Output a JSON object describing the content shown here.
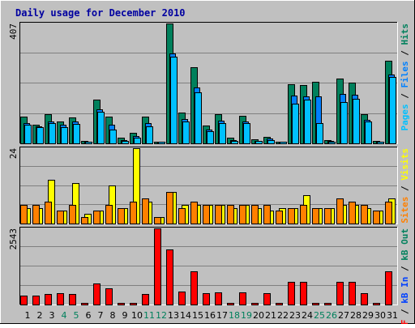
{
  "colors": {
    "background": "#c0c0c0",
    "frame": "#ffffff",
    "title": "#0000a0",
    "hits": "#00805c",
    "files": "#0080ff",
    "pages": "#00c0ff",
    "visits": "#ffff00",
    "sites": "#ff8000",
    "kbin": "#0040ff",
    "kbout": "#00805c",
    "kbf": "#ff0000",
    "weekend": "#00805c",
    "weekday": "#000000",
    "grid": "#808080"
  },
  "chart_data": {
    "type": "bar",
    "title": "Daily usage for December 2010",
    "categories": [
      "1",
      "2",
      "3",
      "4",
      "5",
      "6",
      "7",
      "8",
      "9",
      "10",
      "11",
      "12",
      "13",
      "14",
      "15",
      "16",
      "17",
      "18",
      "19",
      "20",
      "21",
      "22",
      "23",
      "24",
      "25",
      "26",
      "27",
      "28",
      "29",
      "30",
      "31"
    ],
    "weekend_days": [
      "4",
      "5",
      "11",
      "12",
      "18",
      "19",
      "25",
      "26"
    ],
    "panels": [
      {
        "id": "hits-files-pages",
        "max_label": "407",
        "ylim": [
          0,
          407
        ],
        "legend_side": "right",
        "legend": [
          {
            "text": "Pages",
            "color": "#00c0ff"
          },
          {
            "text": " / ",
            "color": "#000000"
          },
          {
            "text": "Files",
            "color": "#0080ff"
          },
          {
            "text": " / ",
            "color": "#000000"
          },
          {
            "text": "Hits",
            "color": "#00805c"
          }
        ],
        "series": [
          {
            "name": "Hits",
            "color": "#00805c",
            "values": [
              90,
              62,
              98,
              75,
              88,
              9,
              148,
              90,
              20,
              35,
              90,
              6,
              407,
              104,
              259,
              60,
              98,
              19,
              94,
              15,
              23,
              5,
              201,
              199,
              208,
              10,
              219,
              206,
              100,
              9,
              280
            ]
          },
          {
            "name": "Files",
            "color": "#0080ff",
            "values": [
              70,
              57,
              75,
              62,
              75,
              6,
              115,
              62,
              12,
              25,
              68,
              4,
              306,
              83,
              190,
              48,
              78,
              12,
              75,
              9,
              17,
              4,
              161,
              159,
              160,
              8,
              168,
              165,
              80,
              6,
              235
            ]
          },
          {
            "name": "Pages",
            "color": "#00c0ff",
            "values": [
              62,
              54,
              68,
              55,
              66,
              5,
              108,
              48,
              8,
              20,
              59,
              3,
              295,
              75,
              173,
              40,
              70,
              8,
              68,
              7,
              11,
              3,
              136,
              148,
              70,
              5,
              140,
              150,
              75,
              4,
              225
            ]
          }
        ]
      },
      {
        "id": "visits-sites",
        "max_label": "24",
        "ylim": [
          0,
          24
        ],
        "legend_side": "right",
        "legend": [
          {
            "text": "Sites",
            "color": "#ff8000"
          },
          {
            "text": " / ",
            "color": "#000000"
          },
          {
            "text": "Visits",
            "color": "#ffff00"
          }
        ],
        "series": [
          {
            "name": "Visits",
            "color": "#ffff00",
            "values": [
              5,
              5,
              14,
              4,
              13,
              3,
              4,
              12,
              5,
              24,
              7,
              2,
              10,
              6,
              6,
              6,
              6,
              5,
              6,
              5,
              4,
              5,
              5,
              9,
              5,
              5,
              6,
              6,
              5,
              4,
              8
            ]
          },
          {
            "name": "Sites",
            "color": "#ff8000",
            "values": [
              6,
              6,
              7,
              4,
              6,
              2,
              4,
              6,
              5,
              7,
              8,
              2,
              10,
              5,
              7,
              6,
              6,
              6,
              6,
              6,
              6,
              4,
              5,
              6,
              5,
              5,
              8,
              7,
              6,
              4,
              7
            ]
          }
        ]
      },
      {
        "id": "kbf-kbin-kbout",
        "max_label": "2543",
        "ylim": [
          0,
          2543
        ],
        "legend_side": "right",
        "legend": [
          {
            "text": "kB F",
            "color": "#ff0000"
          },
          {
            "text": " / ",
            "color": "#000000"
          },
          {
            "text": "kB In",
            "color": "#0040ff"
          },
          {
            "text": " / ",
            "color": "#000000"
          },
          {
            "text": "kB Out",
            "color": "#00805c"
          }
        ],
        "series": [
          {
            "name": "kB F",
            "color": "#ff0000",
            "values": [
              300,
              300,
              360,
              380,
              360,
              20,
              690,
              540,
              40,
              50,
              350,
              2543,
              1840,
              420,
              1110,
              390,
              410,
              55,
              410,
              45,
              380,
              40,
              750,
              750,
              45,
              45,
              760,
              750,
              390,
              30,
              1120
            ]
          }
        ]
      }
    ]
  }
}
